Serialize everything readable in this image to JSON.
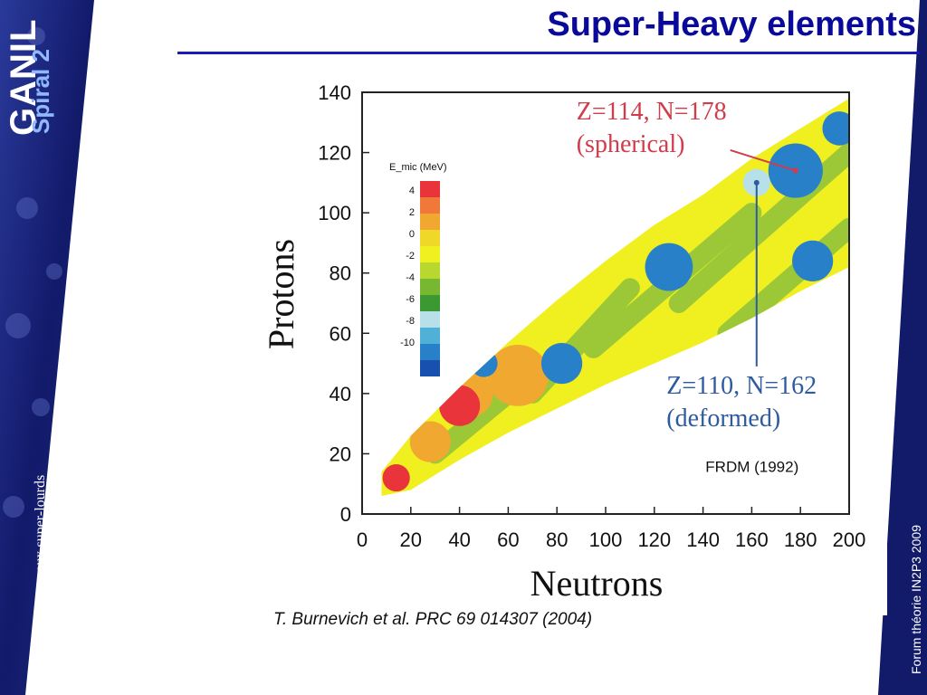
{
  "slide": {
    "title": "Super-Heavy elements",
    "logo_main": "GANIL",
    "logo_sub": "Spiral 2",
    "left_vertical_text": "synthèse des noyaux super-lourds",
    "right_vertical_text": "Forum théorie IN2P3 2009",
    "citation": "T. Burnevich et al. PRC 69 014307 (2004)"
  },
  "colors": {
    "title": "#0a0a9a",
    "rule": "#1a1ab4",
    "banner_dark": "#101a6a",
    "annotation_red": "#d23c4a",
    "annotation_blue": "#2d5aa0"
  },
  "chart_data": {
    "type": "heatmap",
    "xlabel": "Neutrons",
    "ylabel": "Protons",
    "xlim": [
      0,
      200
    ],
    "ylim": [
      0,
      140
    ],
    "xticks": [
      0,
      20,
      40,
      60,
      80,
      100,
      120,
      140,
      160,
      180,
      200
    ],
    "yticks": [
      0,
      20,
      40,
      60,
      80,
      100,
      120,
      140
    ],
    "colorbar": {
      "label": "E_mic (MeV)",
      "ticks": [
        4,
        2,
        0,
        -2,
        -4,
        -6,
        -8,
        -10
      ],
      "colors": [
        "#e8343a",
        "#f07838",
        "#f0a830",
        "#f0d828",
        "#f0f020",
        "#b8d830",
        "#78b830",
        "#3c9830",
        "#b8e0e8",
        "#50b0d8",
        "#2880c8",
        "#1850b0"
      ]
    },
    "bands": [
      {
        "level": 0,
        "color": "#f0f020"
      },
      {
        "level": -2,
        "color": "#9cc838"
      }
    ],
    "regions": [
      {
        "n": 44,
        "z": 40,
        "r": 7,
        "color": "#f0a830"
      },
      {
        "n": 40,
        "z": 36,
        "r": 6,
        "color": "#e8343a"
      },
      {
        "n": 64,
        "z": 46,
        "r": 9,
        "color": "#f0a830"
      },
      {
        "n": 28,
        "z": 24,
        "r": 6,
        "color": "#f0a830"
      },
      {
        "n": 14,
        "z": 12,
        "r": 4,
        "color": "#e8343a"
      },
      {
        "n": 50,
        "z": 50,
        "r": 4,
        "color": "#2880c8"
      },
      {
        "n": 82,
        "z": 50,
        "r": 6,
        "color": "#2880c8"
      },
      {
        "n": 126,
        "z": 82,
        "r": 7,
        "color": "#2880c8"
      },
      {
        "n": 178,
        "z": 114,
        "r": 8,
        "color": "#2880c8"
      },
      {
        "n": 185,
        "z": 84,
        "r": 6,
        "color": "#2880c8"
      },
      {
        "n": 162,
        "z": 110,
        "r": 4,
        "color": "#b8e0e8"
      },
      {
        "n": 196,
        "z": 128,
        "r": 5,
        "color": "#2880c8"
      }
    ],
    "annotations": [
      {
        "lines": [
          "Z=114, N=178",
          "(spherical)"
        ],
        "point": {
          "n": 178,
          "z": 114
        },
        "label_at": {
          "n": 88,
          "z": 131
        },
        "color": "red"
      },
      {
        "lines": [
          "Z=110, N=162",
          "(deformed)"
        ],
        "point": {
          "n": 162,
          "z": 110
        },
        "label_at": {
          "n": 125,
          "z": 40
        },
        "color": "blue"
      }
    ],
    "note": "FRDM (1992)"
  }
}
